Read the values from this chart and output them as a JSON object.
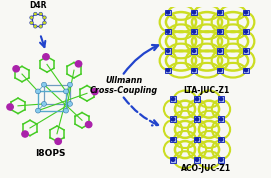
{
  "bg_color": "#f8f8f4",
  "blue_node_face": "#aabbee",
  "blue_node_edge": "#2233bb",
  "blue_node_inner": "#1122aa",
  "link_color": "#ccdd22",
  "link_edge": "#aaaa00",
  "purple_color": "#aa22aa",
  "green_color": "#44cc22",
  "cage_blue": "#4488cc",
  "cage_blue2": "#2255aa",
  "arrow_color": "#2244cc",
  "black": "#111111",
  "text_ullmann": "Ullmann\nCross-Coupling",
  "label_i8ops": "I8OPS",
  "label_lta": "LTA-JUC-Z1",
  "label_aco": "ACO-JUC-Z1",
  "label_d4r": "D4R"
}
